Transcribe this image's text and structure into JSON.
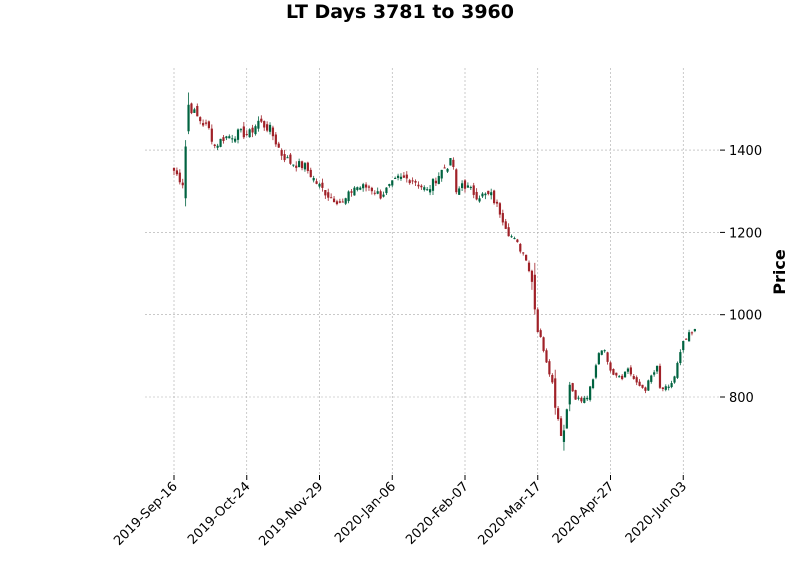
{
  "chart_data": {
    "type": "candlestick",
    "title": "LT Days 3781 to 3960",
    "ylabel": "Price",
    "xlabel": "",
    "ylim": [
      620,
      1570
    ],
    "y_ticks": [
      800,
      1000,
      1200,
      1400
    ],
    "y_tick_labels": [
      "800",
      "1000",
      "1200",
      "1400"
    ],
    "x_tick_labels": [
      "2019-Sep-16",
      "2019-Oct-24",
      "2019-Nov-29",
      "2020-Jan-06",
      "2020-Feb-07",
      "2020-Mar-17",
      "2020-Apr-27",
      "2020-Jun-03"
    ],
    "x_tick_index": [
      0,
      25,
      50,
      75,
      100,
      125,
      150,
      175
    ],
    "n_points": 180,
    "grid": true,
    "y_axis_side": "right",
    "up_color": "#006340",
    "down_color": "#a02128",
    "anchors": [
      [
        0,
        1350
      ],
      [
        3,
        1320
      ],
      [
        4,
        1410
      ],
      [
        5,
        1510
      ],
      [
        8,
        1480
      ],
      [
        12,
        1450
      ],
      [
        14,
        1410
      ],
      [
        17,
        1430
      ],
      [
        22,
        1440
      ],
      [
        26,
        1440
      ],
      [
        29,
        1470
      ],
      [
        33,
        1450
      ],
      [
        37,
        1390
      ],
      [
        40,
        1370
      ],
      [
        45,
        1360
      ],
      [
        49,
        1320
      ],
      [
        53,
        1290
      ],
      [
        58,
        1270
      ],
      [
        62,
        1310
      ],
      [
        67,
        1310
      ],
      [
        71,
        1290
      ],
      [
        74,
        1310
      ],
      [
        77,
        1330
      ],
      [
        82,
        1330
      ],
      [
        87,
        1300
      ],
      [
        92,
        1350
      ],
      [
        95,
        1370
      ],
      [
        96,
        1360
      ],
      [
        97,
        1290
      ],
      [
        99,
        1320
      ],
      [
        104,
        1290
      ],
      [
        109,
        1290
      ],
      [
        112,
        1250
      ],
      [
        115,
        1200
      ],
      [
        118,
        1170
      ],
      [
        121,
        1140
      ],
      [
        123,
        1080
      ],
      [
        124,
        1020
      ],
      [
        125,
        960
      ],
      [
        126,
        950
      ],
      [
        128,
        880
      ],
      [
        130,
        840
      ],
      [
        131,
        780
      ],
      [
        133,
        710
      ],
      [
        134,
        720
      ],
      [
        136,
        830
      ],
      [
        138,
        800
      ],
      [
        140,
        790
      ],
      [
        142,
        800
      ],
      [
        144,
        840
      ],
      [
        146,
        910
      ],
      [
        148,
        920
      ],
      [
        149,
        880
      ],
      [
        151,
        860
      ],
      [
        154,
        850
      ],
      [
        156,
        870
      ],
      [
        159,
        830
      ],
      [
        162,
        820
      ],
      [
        164,
        850
      ],
      [
        166,
        870
      ],
      [
        167,
        820
      ],
      [
        170,
        820
      ],
      [
        172,
        850
      ],
      [
        173,
        880
      ],
      [
        175,
        930
      ],
      [
        177,
        950
      ],
      [
        179,
        960
      ]
    ],
    "big_moves": [
      4,
      5,
      123,
      124,
      127,
      131,
      134,
      136
    ]
  }
}
